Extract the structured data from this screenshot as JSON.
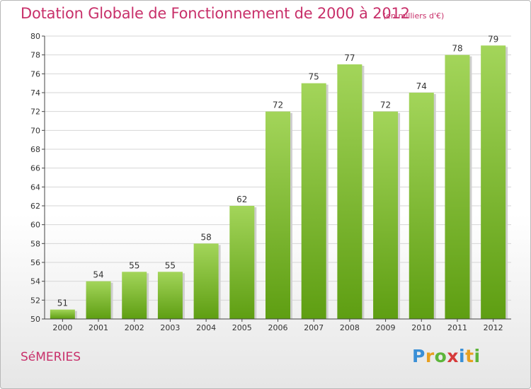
{
  "title": "Dotation Globale de Fonctionnement de 2000 à 2012",
  "subtitle": "(en milliers d'€)",
  "commune": "SéMERIES",
  "logo": {
    "letters": [
      "P",
      "r",
      "o",
      "x",
      "i",
      "t",
      "i"
    ],
    "colors": [
      "#3a8fd6",
      "#e8a020",
      "#5db53a",
      "#d63a3a",
      "#3a8fd6",
      "#e8a020",
      "#5db53a"
    ]
  },
  "colors": {
    "bar_top": "#a3d55a",
    "bar_bottom": "#5e9e12",
    "grid": "#d6d6d6",
    "axis": "#444444",
    "text": "#333333",
    "accent": "#c8306a"
  },
  "chart_data": {
    "type": "bar",
    "categories": [
      "2000",
      "2001",
      "2002",
      "2003",
      "2004",
      "2005",
      "2006",
      "2007",
      "2008",
      "2009",
      "2010",
      "2011",
      "2012"
    ],
    "values": [
      51,
      54,
      55,
      55,
      58,
      62,
      72,
      75,
      77,
      72,
      74,
      78,
      79
    ],
    "ylim": [
      50,
      80
    ],
    "yticks": [
      50,
      52,
      54,
      56,
      58,
      60,
      62,
      64,
      66,
      68,
      70,
      72,
      74,
      76,
      78,
      80
    ],
    "grid": true,
    "data_labels": true
  }
}
